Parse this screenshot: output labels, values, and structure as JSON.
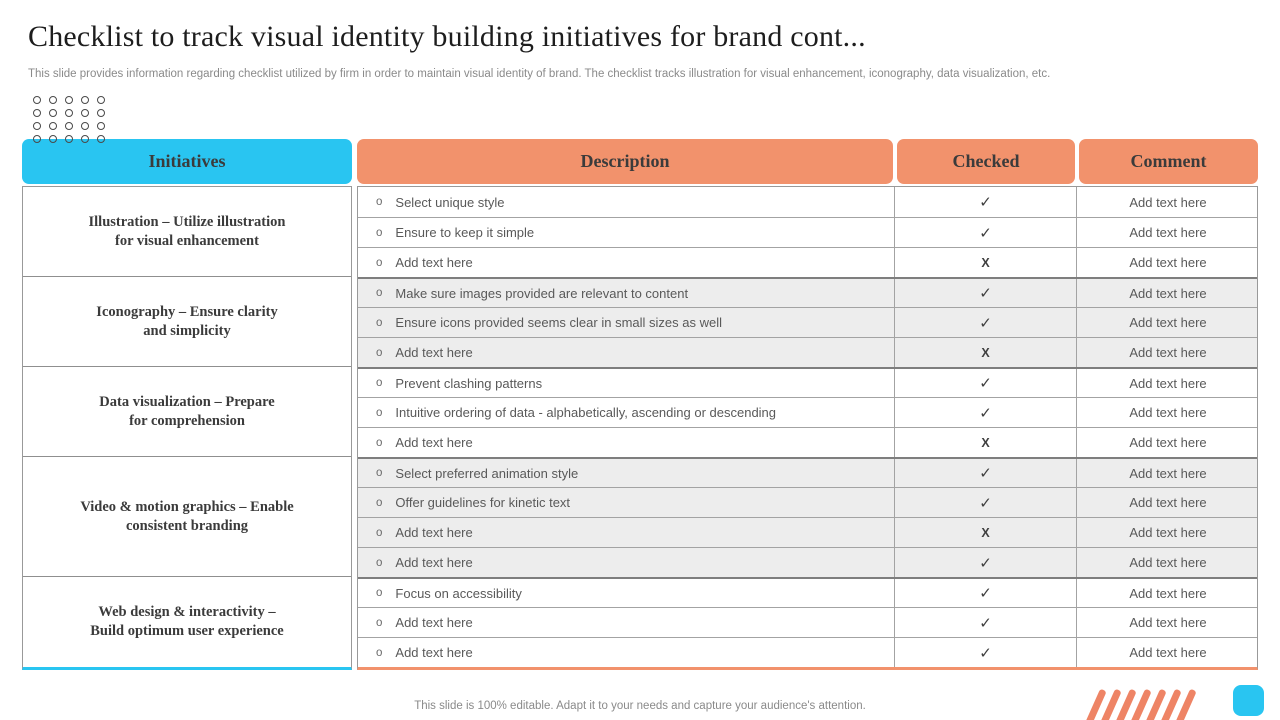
{
  "slide": {
    "title": "Checklist to track visual identity building initiatives for brand cont...",
    "subtitle": "This slide provides information regarding checklist utilized by firm in order to maintain visual identity of brand. The checklist tracks illustration for visual enhancement, iconography, data visualization, etc.",
    "footer": "This slide is 100% editable. Adapt it to your needs and capture your audience's attention."
  },
  "table": {
    "headers": [
      "Initiatives",
      "Description",
      "Checked",
      "Comment"
    ],
    "groups": [
      {
        "initiative_lines": [
          "Illustration – Utilize illustration",
          "for visual enhancement"
        ],
        "shaded": false,
        "rows": [
          {
            "description": "Select unique style",
            "checked": "✓",
            "comment": "Add text here"
          },
          {
            "description": "Ensure to keep it simple",
            "checked": "✓",
            "comment": "Add text here"
          },
          {
            "description": "Add text here",
            "checked": "X",
            "comment": "Add text here"
          }
        ]
      },
      {
        "initiative_lines": [
          "Iconography – Ensure clarity",
          "and simplicity"
        ],
        "shaded": true,
        "rows": [
          {
            "description": "Make sure images provided are relevant to content",
            "checked": "✓",
            "comment": "Add text here"
          },
          {
            "description": "Ensure icons provided seems clear in small sizes as well",
            "checked": "✓",
            "comment": "Add text here"
          },
          {
            "description": "Add text here",
            "checked": "X",
            "comment": "Add text here"
          }
        ]
      },
      {
        "initiative_lines": [
          "Data visualization – Prepare",
          "for comprehension"
        ],
        "shaded": false,
        "rows": [
          {
            "description": "Prevent clashing patterns",
            "checked": "✓",
            "comment": "Add text here"
          },
          {
            "description": "Intuitive ordering of data - alphabetically, ascending or descending",
            "checked": "✓",
            "comment": "Add text here"
          },
          {
            "description": "Add text here",
            "checked": "X",
            "comment": "Add text here"
          }
        ]
      },
      {
        "initiative_lines": [
          "Video & motion graphics – Enable",
          "consistent branding"
        ],
        "shaded": true,
        "rows": [
          {
            "description": "Select preferred animation style",
            "checked": "✓",
            "comment": "Add text here"
          },
          {
            "description": "Offer guidelines for kinetic text",
            "checked": "✓",
            "comment": "Add text here"
          },
          {
            "description": "Add text here",
            "checked": "X",
            "comment": "Add text here"
          },
          {
            "description": "Add text here",
            "checked": "✓",
            "comment": "Add text here"
          }
        ]
      },
      {
        "initiative_lines": [
          "Web design & interactivity –",
          "Build optimum user experience"
        ],
        "shaded": false,
        "rows": [
          {
            "description": "Focus on accessibility",
            "checked": "✓",
            "comment": "Add text here"
          },
          {
            "description": "Add text here",
            "checked": "✓",
            "comment": "Add text here"
          },
          {
            "description": "Add text here",
            "checked": "✓",
            "comment": "Add text here"
          }
        ]
      }
    ]
  },
  "decorations": {
    "dots_grid": {
      "rows": 4,
      "cols": 5
    },
    "stripe_count": 7
  },
  "colors": {
    "accent_cyan": "#29C5F1",
    "accent_salmon": "#F2926C",
    "stripe_orange": "#EE8465",
    "row_alt_gray": "#EDEDED",
    "border_gray": "#999999",
    "text_dark": "#3B3B3B",
    "text_gray": "#595959",
    "text_muted": "#8A8A8A"
  }
}
